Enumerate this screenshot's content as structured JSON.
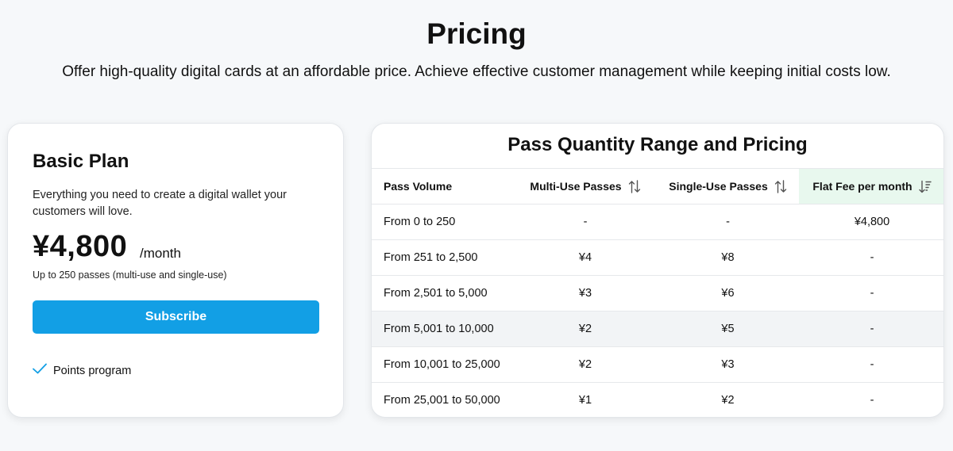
{
  "header": {
    "title": "Pricing",
    "subtitle": "Offer high-quality digital cards at an affordable price. Achieve effective customer management while keeping initial costs low."
  },
  "plan": {
    "name": "Basic Plan",
    "description": "Everything you need to create a digital wallet your customers will love.",
    "price": "¥4,800",
    "period": "/month",
    "limit": "Up to 250 passes (multi-use and single-use)",
    "subscribe_label": "Subscribe",
    "features": [
      "Points program"
    ],
    "accent_color": "#129fe5"
  },
  "pricing_table": {
    "title": "Pass Quantity Range and Pricing",
    "columns": [
      "Pass Volume",
      "Multi-Use Passes",
      "Single-Use Passes",
      "Flat Fee per month"
    ],
    "sorted_column": "Flat Fee per month",
    "rows": [
      [
        "From 0 to 250",
        "-",
        "-",
        "¥4,800"
      ],
      [
        "From 251 to 2,500",
        "¥4",
        "¥8",
        "-"
      ],
      [
        "From 2,501 to 5,000",
        "¥3",
        "¥6",
        "-"
      ],
      [
        "From 5,001 to 10,000",
        "¥2",
        "¥5",
        "-"
      ],
      [
        "From 10,001 to 25,000",
        "¥2",
        "¥3",
        "-"
      ],
      [
        "From 25,001 to 50,000",
        "¥1",
        "¥2",
        "-"
      ]
    ],
    "highlighted_row": 3
  },
  "icons": {
    "sort": "sort-arrows-icon",
    "sorted": "sort-descending-icon",
    "feature": "check-icon"
  }
}
